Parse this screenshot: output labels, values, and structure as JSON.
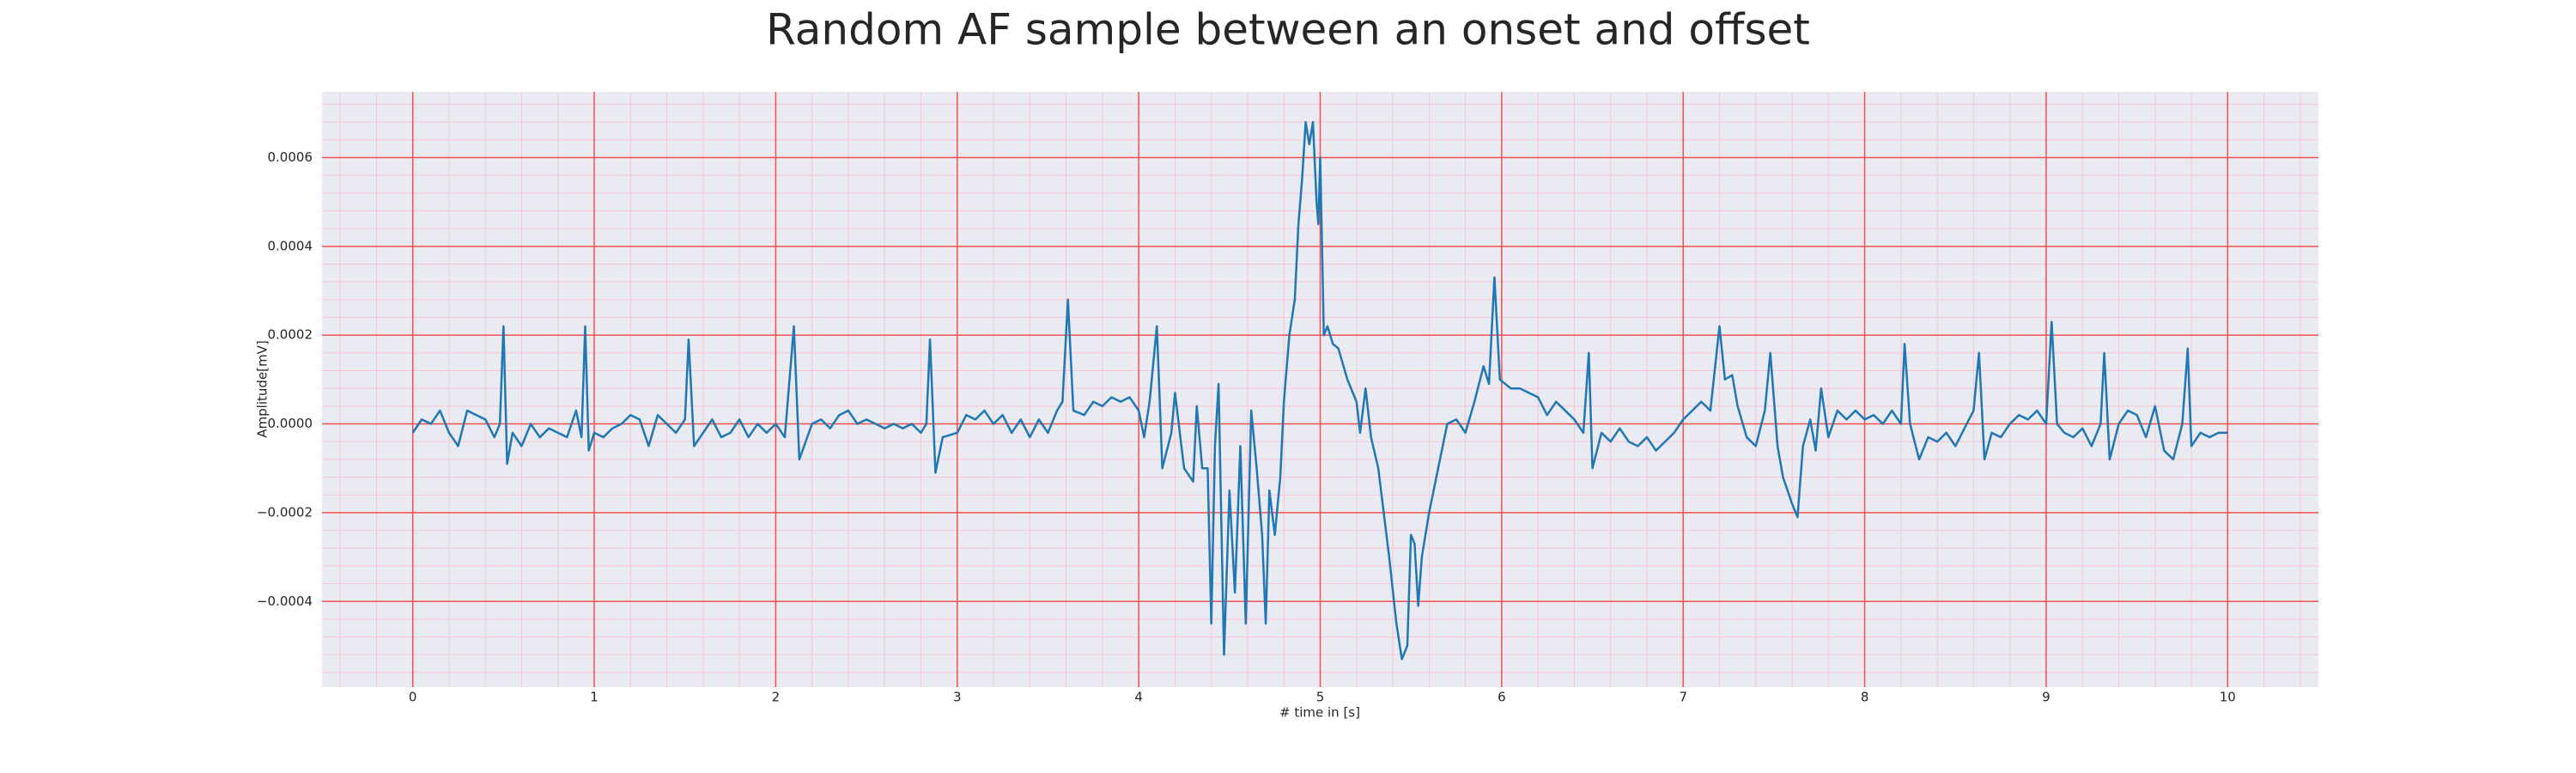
{
  "chart_data": {
    "type": "line",
    "title": "Random AF sample between an onset and offset",
    "xlabel": "# time in [s]",
    "ylabel": "Amplitude[mV]",
    "color": "#1f77b4",
    "grid": true,
    "minor_grid": true,
    "xlim": [
      -0.5,
      10.5
    ],
    "ylim": [
      -0.000593,
      0.000748
    ],
    "xticks": [
      0,
      1,
      2,
      3,
      4,
      5,
      6,
      7,
      8,
      9,
      10
    ],
    "yticks": [
      {
        "value": -0.0004,
        "label": "−0.0004"
      },
      {
        "value": -0.0002,
        "label": "−0.0002"
      },
      {
        "value": 0,
        "label": "0.0000"
      },
      {
        "value": 0.0002,
        "label": "0.0002"
      },
      {
        "value": 0.0004,
        "label": "0.0004"
      },
      {
        "value": 0.0006,
        "label": "0.0006"
      }
    ],
    "x": [
      0,
      0.05,
      0.1,
      0.15,
      0.2,
      0.25,
      0.3,
      0.35,
      0.4,
      0.45,
      0.48,
      0.5,
      0.52,
      0.55,
      0.6,
      0.65,
      0.7,
      0.75,
      0.8,
      0.85,
      0.9,
      0.93,
      0.95,
      0.97,
      1.0,
      1.05,
      1.1,
      1.15,
      1.2,
      1.25,
      1.3,
      1.35,
      1.4,
      1.45,
      1.5,
      1.52,
      1.55,
      1.6,
      1.65,
      1.7,
      1.75,
      1.8,
      1.85,
      1.9,
      1.95,
      2.0,
      2.05,
      2.1,
      2.13,
      2.2,
      2.25,
      2.3,
      2.35,
      2.4,
      2.45,
      2.5,
      2.55,
      2.6,
      2.65,
      2.7,
      2.75,
      2.8,
      2.83,
      2.85,
      2.88,
      2.92,
      3.0,
      3.05,
      3.1,
      3.15,
      3.2,
      3.25,
      3.3,
      3.35,
      3.4,
      3.45,
      3.5,
      3.55,
      3.58,
      3.61,
      3.64,
      3.7,
      3.75,
      3.8,
      3.85,
      3.9,
      3.95,
      4.0,
      4.03,
      4.06,
      4.1,
      4.13,
      4.18,
      4.2,
      4.25,
      4.3,
      4.32,
      4.35,
      4.38,
      4.4,
      4.42,
      4.44,
      4.47,
      4.5,
      4.53,
      4.56,
      4.59,
      4.62,
      4.65,
      4.68,
      4.7,
      4.72,
      4.75,
      4.78,
      4.8,
      4.83,
      4.86,
      4.88,
      4.9,
      4.92,
      4.94,
      4.96,
      4.98,
      4.99,
      5.0,
      5.02,
      5.04,
      5.07,
      5.1,
      5.15,
      5.2,
      5.22,
      5.25,
      5.28,
      5.32,
      5.35,
      5.38,
      5.42,
      5.45,
      5.48,
      5.5,
      5.52,
      5.54,
      5.56,
      5.6,
      5.65,
      5.7,
      5.75,
      5.8,
      5.85,
      5.9,
      5.93,
      5.96,
      5.99,
      6.05,
      6.1,
      6.15,
      6.2,
      6.25,
      6.3,
      6.35,
      6.4,
      6.45,
      6.48,
      6.5,
      6.55,
      6.6,
      6.65,
      6.7,
      6.75,
      6.8,
      6.85,
      6.9,
      6.95,
      7.0,
      7.05,
      7.1,
      7.15,
      7.2,
      7.23,
      7.27,
      7.3,
      7.35,
      7.4,
      7.45,
      7.48,
      7.52,
      7.55,
      7.6,
      7.63,
      7.66,
      7.7,
      7.73,
      7.76,
      7.8,
      7.85,
      7.9,
      7.95,
      8.0,
      8.05,
      8.1,
      8.15,
      8.2,
      8.22,
      8.25,
      8.3,
      8.35,
      8.4,
      8.45,
      8.5,
      8.55,
      8.6,
      8.63,
      8.66,
      8.7,
      8.75,
      8.8,
      8.85,
      8.9,
      8.95,
      9.0,
      9.03,
      9.06,
      9.1,
      9.15,
      9.2,
      9.25,
      9.3,
      9.32,
      9.35,
      9.4,
      9.45,
      9.5,
      9.55,
      9.6,
      9.65,
      9.7,
      9.75,
      9.78,
      9.8,
      9.85,
      9.9,
      9.95,
      10.0
    ],
    "values": [
      -2e-05,
      1e-05,
      0,
      3e-05,
      -2e-05,
      -5e-05,
      3e-05,
      2e-05,
      1e-05,
      -3e-05,
      0,
      0.00022,
      -9e-05,
      -2e-05,
      -5e-05,
      0,
      -3e-05,
      -1e-05,
      -2e-05,
      -3e-05,
      3e-05,
      -3e-05,
      0.00022,
      -6e-05,
      -2e-05,
      -3e-05,
      -1e-05,
      0,
      2e-05,
      1e-05,
      -5e-05,
      2e-05,
      0,
      -2e-05,
      1e-05,
      0.00019,
      -5e-05,
      -2e-05,
      1e-05,
      -3e-05,
      -2e-05,
      1e-05,
      -3e-05,
      0,
      -2e-05,
      0,
      -3e-05,
      0.00022,
      -8e-05,
      0,
      1e-05,
      -1e-05,
      2e-05,
      3e-05,
      0,
      1e-05,
      0,
      -1e-05,
      0,
      -1e-05,
      0,
      -2e-05,
      0,
      0.00019,
      -0.00011,
      -3e-05,
      -2e-05,
      2e-05,
      1e-05,
      3e-05,
      0,
      2e-05,
      -2e-05,
      1e-05,
      -3e-05,
      1e-05,
      -2e-05,
      3e-05,
      5e-05,
      0.00028,
      3e-05,
      2e-05,
      5e-05,
      4e-05,
      6e-05,
      5e-05,
      6e-05,
      3e-05,
      -3e-05,
      5e-05,
      0.00022,
      -0.0001,
      -2e-05,
      7e-05,
      -0.0001,
      -0.00013,
      4e-05,
      -0.0001,
      -0.0001,
      -0.00045,
      -5e-05,
      9e-05,
      -0.00052,
      -0.00015,
      -0.00038,
      -5e-05,
      -0.00045,
      3e-05,
      -0.0001,
      -0.00025,
      -0.00045,
      -0.00015,
      -0.00025,
      -0.00012,
      5e-05,
      0.0002,
      0.00028,
      0.00045,
      0.00055,
      0.00068,
      0.00063,
      0.00068,
      0.0005,
      0.00045,
      0.0006,
      0.0002,
      0.00022,
      0.00018,
      0.00017,
      0.0001,
      5e-05,
      -2e-05,
      8e-05,
      -3e-05,
      -0.0001,
      -0.0002,
      -0.0003,
      -0.00045,
      -0.00053,
      -0.0005,
      -0.00025,
      -0.00027,
      -0.00041,
      -0.0003,
      -0.0002,
      -0.0001,
      0,
      1e-05,
      -2e-05,
      5e-05,
      0.00013,
      9e-05,
      0.00033,
      0.0001,
      8e-05,
      8e-05,
      7e-05,
      6e-05,
      2e-05,
      5e-05,
      3e-05,
      1e-05,
      -2e-05,
      0.00016,
      -0.0001,
      -2e-05,
      -4e-05,
      -1e-05,
      -4e-05,
      -5e-05,
      -3e-05,
      -6e-05,
      -4e-05,
      -2e-05,
      1e-05,
      3e-05,
      5e-05,
      3e-05,
      0.00022,
      0.0001,
      0.00011,
      4e-05,
      -3e-05,
      -5e-05,
      3e-05,
      0.00016,
      -5e-05,
      -0.00012,
      -0.00018,
      -0.00021,
      -5e-05,
      1e-05,
      -6e-05,
      8e-05,
      -3e-05,
      3e-05,
      1e-05,
      3e-05,
      1e-05,
      2e-05,
      0,
      3e-05,
      0,
      0.00018,
      0,
      -8e-05,
      -3e-05,
      -4e-05,
      -2e-05,
      -5e-05,
      -1e-05,
      3e-05,
      0.00016,
      -8e-05,
      -2e-05,
      -3e-05,
      0,
      2e-05,
      1e-05,
      3e-05,
      0,
      0.00023,
      0,
      -2e-05,
      -3e-05,
      -1e-05,
      -5e-05,
      0,
      0.00016,
      -8e-05,
      0,
      3e-05,
      2e-05,
      -3e-05,
      4e-05,
      -6e-05,
      -8e-05,
      0,
      0.00017,
      -5e-05,
      -2e-05,
      -3e-05,
      -2e-05,
      -2e-05
    ]
  }
}
